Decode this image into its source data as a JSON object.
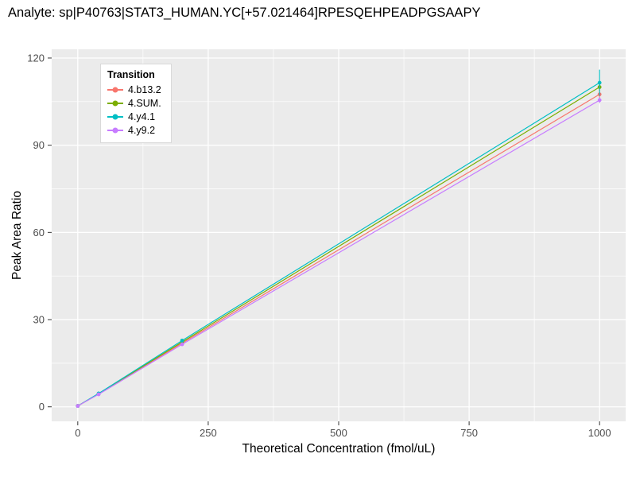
{
  "chart_data": {
    "type": "line",
    "title": "Analyte: sp|P40763|STAT3_HUMAN.YC[+57.021464]RPESQEHPEADPGSAAPY",
    "xlabel": "Theoretical Concentration (fmol/uL)",
    "ylabel": "Peak Area Ratio",
    "legend_title": "Transition",
    "legend_position": "top-left-inside",
    "x": [
      0,
      40,
      200,
      1000
    ],
    "series": [
      {
        "name": "4.b13.2",
        "color": "#F8766D",
        "values": [
          0.3,
          4.4,
          21.9,
          107.5
        ],
        "errors": [
          0,
          0,
          0.4,
          1.5
        ]
      },
      {
        "name": "4.SUM.",
        "color": "#7CAE00",
        "values": [
          0.3,
          4.5,
          22.3,
          110.0
        ],
        "errors": [
          0,
          0,
          0.4,
          1.2
        ]
      },
      {
        "name": "4.y4.1",
        "color": "#00BFC4",
        "values": [
          0.3,
          4.6,
          22.8,
          111.5
        ],
        "errors": [
          0,
          0,
          0.5,
          4.5
        ]
      },
      {
        "name": "4.y9.2",
        "color": "#C77CFF",
        "values": [
          0.3,
          4.3,
          21.5,
          105.5
        ],
        "errors": [
          0,
          0,
          0.3,
          1.0
        ]
      }
    ],
    "xticks": [
      0,
      250,
      500,
      750,
      1000
    ],
    "yticks": [
      0,
      30,
      60,
      90,
      120
    ],
    "x_minor": [
      125,
      375,
      625,
      875
    ],
    "y_minor": [
      15,
      45,
      75,
      105
    ],
    "xlim": [
      -50,
      1050
    ],
    "ylim": [
      -5,
      123
    ],
    "grid": true,
    "panel_background": "#EBEBEB",
    "grid_color": "#FFFFFF",
    "tick_color": "#333333",
    "tick_label_color": "#4D4D4D"
  }
}
